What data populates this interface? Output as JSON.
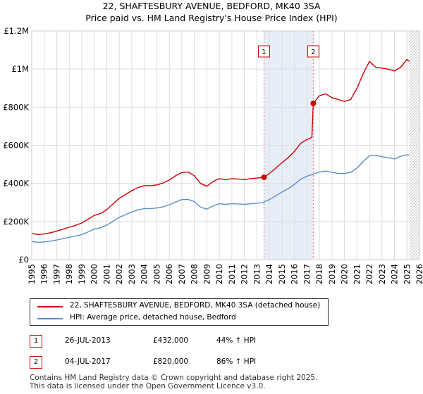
{
  "title": "22, SHAFTESBURY AVENUE, BEDFORD, MK40 3SA",
  "subtitle": "Price paid vs. HM Land Registry's House Price Index (HPI)",
  "colors": {
    "property": "#cc0000",
    "hpi": "#5b8fc9",
    "highlight": "#e8eef8",
    "grid": "#dddddd"
  },
  "chart_data": {
    "type": "line",
    "title": "22, SHAFTESBURY AVENUE, BEDFORD, MK40 3SA",
    "subtitle": "Price paid vs. HM Land Registry's House Price Index (HPI)",
    "xlabel": "",
    "ylabel": "",
    "xlim": [
      1995,
      2026
    ],
    "ylim": [
      0,
      1200000
    ],
    "grid": true,
    "y_ticks": [
      0,
      200000,
      400000,
      600000,
      800000,
      1000000,
      1200000
    ],
    "y_tick_labels": [
      "£0",
      "£200K",
      "£400K",
      "£600K",
      "£800K",
      "£1M",
      "£1.2M"
    ],
    "x_ticks": [
      1995,
      1996,
      1997,
      1998,
      1999,
      2000,
      2001,
      2002,
      2003,
      2004,
      2005,
      2006,
      2007,
      2008,
      2009,
      2010,
      2011,
      2012,
      2013,
      2014,
      2015,
      2016,
      2017,
      2018,
      2019,
      2020,
      2021,
      2022,
      2023,
      2024,
      2025,
      2026
    ],
    "x_tick_labels": [
      "1995",
      "1996",
      "1997",
      "1998",
      "1999",
      "2000",
      "2001",
      "2002",
      "2003",
      "2004",
      "2005",
      "2006",
      "2007",
      "2008",
      "2009",
      "2010",
      "2011",
      "2012",
      "2013",
      "2014",
      "2015",
      "2016",
      "2017",
      "2018",
      "2019",
      "2020",
      "2021",
      "2022",
      "2023",
      "2024",
      "2025",
      "2026"
    ],
    "highlight_range": [
      2013.57,
      2017.51
    ],
    "data_end": 2025.2,
    "series": [
      {
        "name": "22, SHAFTESBURY AVENUE, BEDFORD, MK40 3SA (detached house)",
        "color": "#cc0000",
        "x": [
          1995,
          1995.5,
          1996,
          1996.5,
          1997,
          1997.5,
          1998,
          1998.5,
          1999,
          1999.5,
          2000,
          2000.5,
          2001,
          2001.5,
          2002,
          2002.5,
          2003,
          2003.5,
          2004,
          2004.5,
          2005,
          2005.5,
          2006,
          2006.5,
          2007,
          2007.5,
          2008,
          2008.5,
          2009,
          2009.5,
          2010,
          2010.5,
          2011,
          2011.5,
          2012,
          2012.5,
          2013,
          2013.57,
          2014,
          2014.5,
          2015,
          2015.5,
          2016,
          2016.5,
          2017,
          2017.4,
          2017.51,
          2018,
          2018.5,
          2019,
          2019.5,
          2020,
          2020.5,
          2021,
          2021.5,
          2022,
          2022.5,
          2023,
          2023.5,
          2024,
          2024.5,
          2025,
          2025.2
        ],
        "values": [
          137000,
          132000,
          135000,
          141000,
          150000,
          160000,
          170000,
          180000,
          192000,
          212000,
          232000,
          242000,
          262000,
          292000,
          322000,
          342000,
          362000,
          378000,
          388000,
          388000,
          392000,
          402000,
          418000,
          440000,
          457000,
          460000,
          440000,
          400000,
          385000,
          410000,
          425000,
          420000,
          425000,
          423000,
          420000,
          425000,
          428000,
          432000,
          452000,
          480000,
          508000,
          535000,
          568000,
          610000,
          630000,
          642000,
          820000,
          860000,
          870000,
          850000,
          840000,
          830000,
          840000,
          900000,
          975000,
          1040000,
          1010000,
          1005000,
          1000000,
          990000,
          1010000,
          1050000,
          1040000
        ]
      },
      {
        "name": "HPI: Average price, detached house, Bedford",
        "color": "#5b8fc9",
        "x": [
          1995,
          1995.5,
          1996,
          1996.5,
          1997,
          1997.5,
          1998,
          1998.5,
          1999,
          1999.5,
          2000,
          2000.5,
          2001,
          2001.5,
          2002,
          2002.5,
          2003,
          2003.5,
          2004,
          2004.5,
          2005,
          2005.5,
          2006,
          2006.5,
          2007,
          2007.5,
          2008,
          2008.5,
          2009,
          2009.5,
          2010,
          2010.5,
          2011,
          2011.5,
          2012,
          2012.5,
          2013,
          2013.5,
          2014,
          2014.5,
          2015,
          2015.5,
          2016,
          2016.5,
          2017,
          2017.5,
          2018,
          2018.5,
          2019,
          2019.5,
          2020,
          2020.5,
          2021,
          2021.5,
          2022,
          2022.5,
          2023,
          2023.5,
          2024,
          2024.5,
          2025,
          2025.2
        ],
        "values": [
          95000,
          91000,
          93000,
          97000,
          103000,
          110000,
          117000,
          124000,
          131000,
          145000,
          160000,
          167000,
          181000,
          201000,
          222000,
          236000,
          250000,
          261000,
          268000,
          268000,
          271000,
          277000,
          288000,
          302000,
          315000,
          316000,
          305000,
          275000,
          265000,
          282000,
          293000,
          290000,
          293000,
          292000,
          290000,
          293000,
          296000,
          300000,
          315000,
          334000,
          354000,
          372000,
          395000,
          422000,
          438000,
          448000,
          460000,
          465000,
          458000,
          452000,
          452000,
          458000,
          480000,
          515000,
          545000,
          548000,
          540000,
          535000,
          528000,
          542000,
          550000,
          548000
        ]
      }
    ],
    "markers": [
      {
        "id": "1",
        "x": 2013.57,
        "value": 432000
      },
      {
        "id": "2",
        "x": 2017.51,
        "value": 820000
      }
    ]
  },
  "legend": {
    "items": [
      {
        "label": "22, SHAFTESBURY AVENUE, BEDFORD, MK40 3SA (detached house)",
        "color": "#cc0000"
      },
      {
        "label": "HPI: Average price, detached house, Bedford",
        "color": "#5b8fc9"
      }
    ]
  },
  "transactions": [
    {
      "id": "1",
      "date": "26-JUL-2013",
      "price": "£432,000",
      "change": "44% ↑ HPI"
    },
    {
      "id": "2",
      "date": "04-JUL-2017",
      "price": "£820,000",
      "change": "86% ↑ HPI"
    }
  ],
  "footer": {
    "line1": "Contains HM Land Registry data © Crown copyright and database right 2025.",
    "line2": "This data is licensed under the Open Government Licence v3.0."
  }
}
